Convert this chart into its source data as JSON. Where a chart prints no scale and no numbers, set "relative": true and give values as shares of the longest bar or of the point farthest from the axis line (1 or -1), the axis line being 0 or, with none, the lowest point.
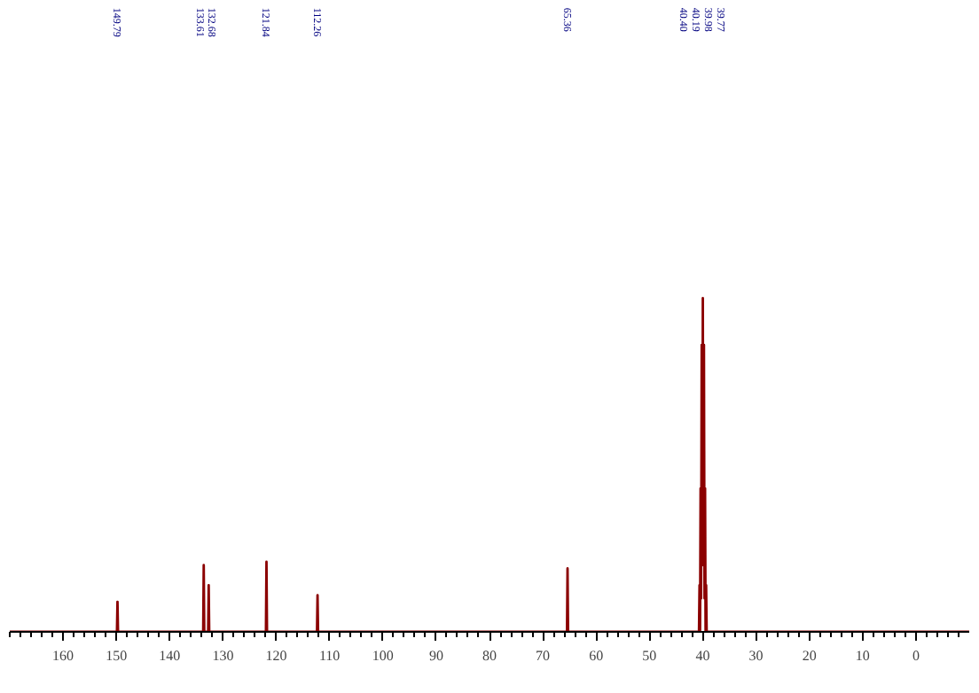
{
  "chart_data": {
    "type": "line",
    "relative": true,
    "xlim": [
      170,
      -10
    ],
    "xticks": [
      160,
      150,
      140,
      130,
      120,
      110,
      100,
      90,
      80,
      70,
      60,
      50,
      40,
      30,
      20,
      10,
      0
    ],
    "grid": false,
    "marker": "none",
    "line_style": "solid",
    "x": [
      170,
      149.89,
      149.79,
      149.69,
      133.71,
      133.61,
      133.51,
      132.78,
      132.68,
      132.58,
      121.94,
      121.84,
      121.74,
      112.36,
      112.26,
      112.16,
      65.46,
      65.36,
      65.26,
      40.7,
      40.6,
      40.5,
      40.4,
      40.3,
      40.19,
      40.08,
      39.98,
      39.88,
      39.77,
      39.66,
      39.56,
      39.46,
      39.36,
      39.26,
      -10
    ],
    "series": [
      {
        "color": "#8b0000",
        "values": [
          0,
          0,
          0.09,
          0,
          0,
          0.2,
          0,
          0,
          0.14,
          0,
          0,
          0.21,
          0,
          0,
          0.11,
          0,
          0,
          0.19,
          0,
          0,
          0.14,
          0,
          0.43,
          0.1,
          0.86,
          0.2,
          1.0,
          0.2,
          0.86,
          0.1,
          0.43,
          0,
          0.14,
          0,
          0
        ]
      }
    ],
    "annotations": [
      "149.79",
      "133.61",
      "132.68",
      "121.84",
      "112.26",
      "65.36",
      "40.40",
      "40.19",
      "39.98",
      "39.77"
    ]
  }
}
